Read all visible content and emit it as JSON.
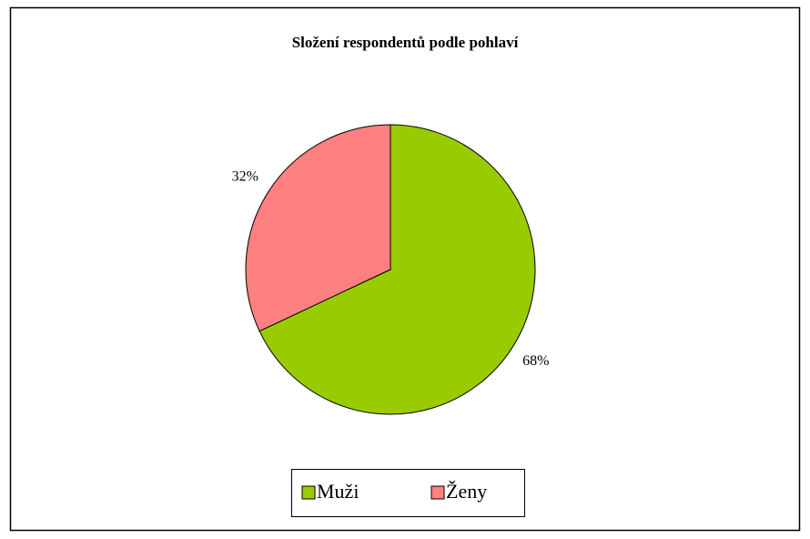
{
  "chart_data": {
    "type": "pie",
    "title": "Složení respondentů podle pohlaví",
    "categories": [
      "Muži",
      "Ženy"
    ],
    "values": [
      68,
      32
    ],
    "value_labels": [
      "68%",
      "32%"
    ],
    "colors": [
      "#99cc00",
      "#ff8080"
    ],
    "legend": "bottom"
  }
}
